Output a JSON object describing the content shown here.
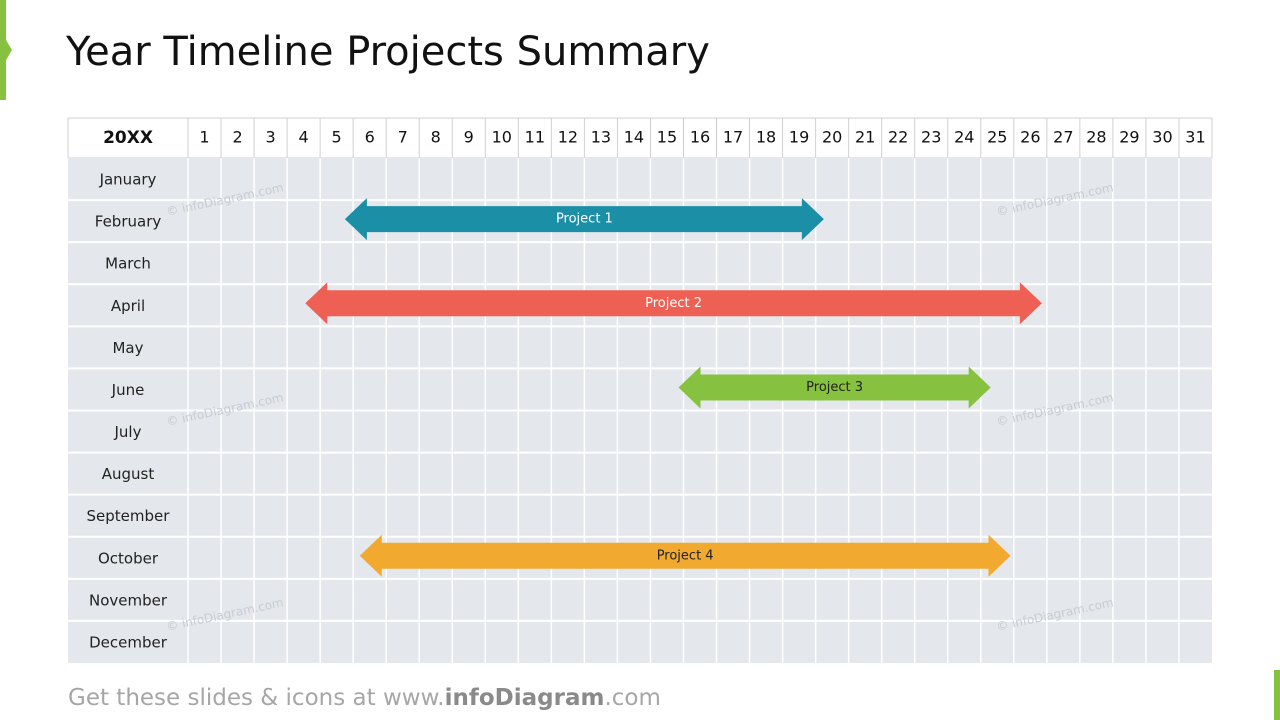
{
  "title": "Year Timeline Projects Summary",
  "table": {
    "year": "20XX",
    "days": [
      "1",
      "2",
      "3",
      "4",
      "5",
      "6",
      "7",
      "8",
      "9",
      "10",
      "11",
      "12",
      "13",
      "14",
      "15",
      "16",
      "17",
      "18",
      "19",
      "20",
      "21",
      "22",
      "23",
      "24",
      "25",
      "26",
      "27",
      "28",
      "29",
      "30",
      "31"
    ],
    "rows": [
      {
        "month": "January"
      },
      {
        "month": "February",
        "project": {
          "label": "Project 1",
          "start": 5.75,
          "end": 20.25,
          "color": "#1a8fa6",
          "text_color": "#ffffff"
        }
      },
      {
        "month": "March"
      },
      {
        "month": "April",
        "project": {
          "label": "Project 2",
          "start": 4.55,
          "end": 26.85,
          "color": "#ef6054",
          "text_color": "#ffffff"
        }
      },
      {
        "month": "May"
      },
      {
        "month": "June",
        "project": {
          "label": "Project 3",
          "start": 15.85,
          "end": 25.3,
          "color": "#86c13f",
          "text_color": "#222222"
        }
      },
      {
        "month": "July"
      },
      {
        "month": "August"
      },
      {
        "month": "September"
      },
      {
        "month": "October",
        "project": {
          "label": "Project 4",
          "start": 6.2,
          "end": 25.9,
          "color": "#f2a930",
          "text_color": "#222222"
        }
      },
      {
        "month": "November"
      },
      {
        "month": "December"
      }
    ]
  },
  "watermark": "© infoDiagram.com",
  "footer": {
    "prefix": "Get these slides & icons at www.",
    "brand": "infoDiagram",
    "suffix": ".com"
  }
}
